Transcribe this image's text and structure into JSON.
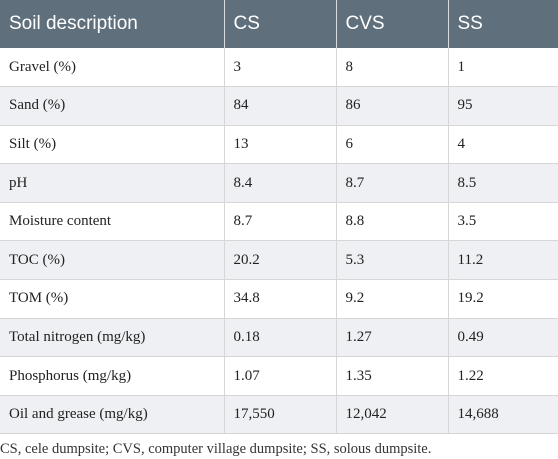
{
  "table": {
    "headers": [
      "Soil description",
      "CS",
      "CVS",
      "SS"
    ],
    "rows": [
      [
        "Gravel (%)",
        "3",
        "8",
        "1"
      ],
      [
        "Sand (%)",
        "84",
        "86",
        "95"
      ],
      [
        "Silt (%)",
        "13",
        "6",
        "4"
      ],
      [
        "pH",
        "8.4",
        "8.7",
        "8.5"
      ],
      [
        "Moisture content",
        "8.7",
        "8.8",
        "3.5"
      ],
      [
        "TOC (%)",
        "20.2",
        "5.3",
        "11.2"
      ],
      [
        "TOM (%)",
        "34.8",
        "9.2",
        "19.2"
      ],
      [
        "Total nitrogen (mg/kg)",
        "0.18",
        "1.27",
        "0.49"
      ],
      [
        "Phosphorus (mg/kg)",
        "1.07",
        "1.35",
        "1.22"
      ],
      [
        "Oil and grease (mg/kg)",
        "17,550",
        "12,042",
        "14,688"
      ]
    ]
  },
  "footnote": "CS, cele dumpsite; CVS, computer village dumpsite; SS, solous dumpsite.",
  "colors": {
    "header_background": "#5f6f7c",
    "header_text": "#ffffff",
    "stripe_background": "#eef0f3"
  }
}
